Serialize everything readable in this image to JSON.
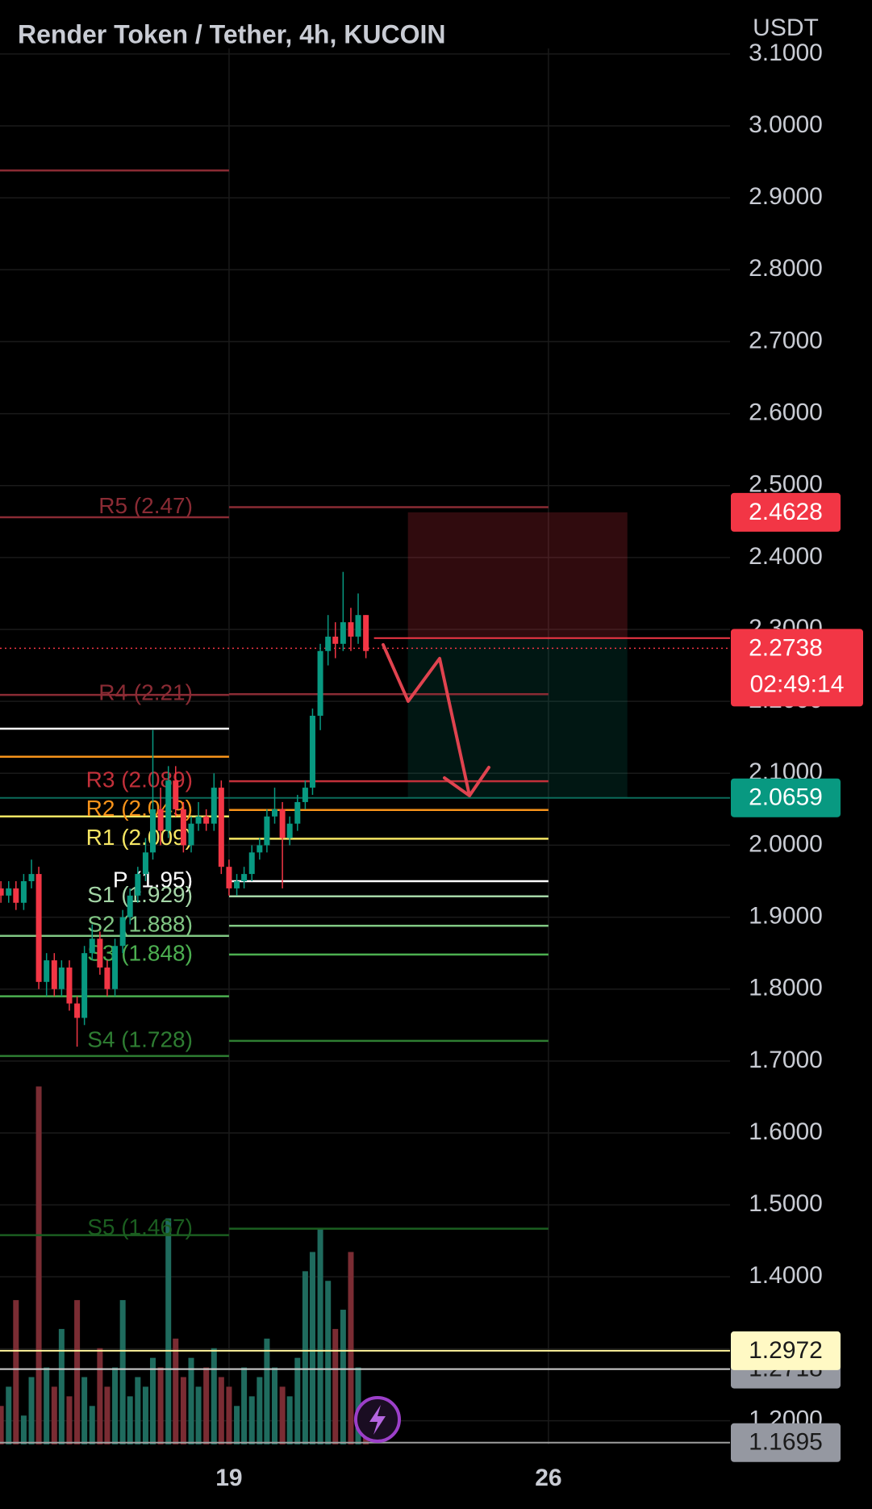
{
  "chart_data": {
    "type": "candlestick",
    "title": "Render Token / Tether, 4h, KUCOIN",
    "currency": "USDT",
    "xlim": [
      13.98,
      29.98
    ],
    "xticks": [
      19,
      26
    ],
    "ylim": [
      1.167,
      3.175
    ],
    "yticks": [
      {
        "value": 1.2,
        "label": "1.2000"
      },
      {
        "value": 1.3,
        "label": "1.3000"
      },
      {
        "value": 1.4,
        "label": "1.4000"
      },
      {
        "value": 1.5,
        "label": "1.5000"
      },
      {
        "value": 1.6,
        "label": "1.6000"
      },
      {
        "value": 1.7,
        "label": "1.7000"
      },
      {
        "value": 1.8,
        "label": "1.8000"
      },
      {
        "value": 1.9,
        "label": "1.9000"
      },
      {
        "value": 2,
        "label": "2.0000"
      },
      {
        "value": 2.1,
        "label": "2.1000"
      },
      {
        "value": 2.2,
        "label": "2.2000"
      },
      {
        "value": 2.3,
        "label": "2.3000"
      },
      {
        "value": 2.4,
        "label": "2.4000"
      },
      {
        "value": 2.5,
        "label": "2.5000"
      },
      {
        "value": 2.6,
        "label": "2.6000"
      },
      {
        "value": 2.7,
        "label": "2.7000"
      },
      {
        "value": 2.8,
        "label": "2.8000"
      },
      {
        "value": 2.9,
        "label": "2.9000"
      },
      {
        "value": 3,
        "label": "3.0000"
      },
      {
        "value": 3.1,
        "label": "3.1000"
      }
    ],
    "grid": true,
    "up_color": "#089981",
    "down_color": "#f23645",
    "x": [
      14,
      14.17,
      14.33,
      14.5,
      14.67,
      14.83,
      15,
      15.17,
      15.33,
      15.5,
      15.67,
      15.83,
      16,
      16.17,
      16.33,
      16.5,
      16.67,
      16.83,
      17,
      17.17,
      17.33,
      17.5,
      17.67,
      17.83,
      18,
      18.17,
      18.33,
      18.5,
      18.67,
      18.83,
      19,
      19.17,
      19.33,
      19.5,
      19.67,
      19.83,
      20,
      20.17,
      20.33,
      20.5,
      20.67,
      20.83,
      21,
      21.17,
      21.33,
      21.5,
      21.67,
      21.83,
      22
    ],
    "candles": [
      [
        1.94,
        1.95,
        1.92,
        1.93
      ],
      [
        1.93,
        1.95,
        1.92,
        1.94
      ],
      [
        1.94,
        1.95,
        1.91,
        1.92
      ],
      [
        1.92,
        1.96,
        1.91,
        1.95
      ],
      [
        1.95,
        1.98,
        1.94,
        1.96
      ],
      [
        1.96,
        1.97,
        1.8,
        1.81
      ],
      [
        1.81,
        1.85,
        1.79,
        1.84
      ],
      [
        1.84,
        1.85,
        1.79,
        1.8
      ],
      [
        1.8,
        1.84,
        1.79,
        1.83
      ],
      [
        1.83,
        1.84,
        1.77,
        1.78
      ],
      [
        1.78,
        1.79,
        1.72,
        1.76
      ],
      [
        1.76,
        1.86,
        1.75,
        1.85
      ],
      [
        1.85,
        1.89,
        1.84,
        1.87
      ],
      [
        1.87,
        1.88,
        1.82,
        1.83
      ],
      [
        1.83,
        1.84,
        1.79,
        1.8
      ],
      [
        1.8,
        1.87,
        1.79,
        1.86
      ],
      [
        1.86,
        1.91,
        1.85,
        1.9
      ],
      [
        1.9,
        1.94,
        1.89,
        1.93
      ],
      [
        1.93,
        1.97,
        1.92,
        1.96
      ],
      [
        1.96,
        2.01,
        1.95,
        1.99
      ],
      [
        1.99,
        2.16,
        1.98,
        2.05
      ],
      [
        2.05,
        2.08,
        2.0,
        2.02
      ],
      [
        2.02,
        2.11,
        2.01,
        2.09
      ],
      [
        2.09,
        2.11,
        2.04,
        2.05
      ],
      [
        2.05,
        2.06,
        1.99,
        2.0
      ],
      [
        2.0,
        2.04,
        1.99,
        2.03
      ],
      [
        2.03,
        2.06,
        2.02,
        2.04
      ],
      [
        2.04,
        2.05,
        2.02,
        2.03
      ],
      [
        2.03,
        2.1,
        2.02,
        2.08
      ],
      [
        2.08,
        2.09,
        1.96,
        1.97
      ],
      [
        1.97,
        1.98,
        1.93,
        1.94
      ],
      [
        1.94,
        1.96,
        1.93,
        1.95
      ],
      [
        1.95,
        1.97,
        1.94,
        1.96
      ],
      [
        1.96,
        2.0,
        1.95,
        1.99
      ],
      [
        1.99,
        2.01,
        1.98,
        2.0
      ],
      [
        2.0,
        2.05,
        1.99,
        2.04
      ],
      [
        2.04,
        2.08,
        2.03,
        2.05
      ],
      [
        2.05,
        2.06,
        1.94,
        2.01
      ],
      [
        2.01,
        2.04,
        2.0,
        2.03
      ],
      [
        2.03,
        2.07,
        2.02,
        2.06
      ],
      [
        2.06,
        2.09,
        2.05,
        2.08
      ],
      [
        2.08,
        2.19,
        2.07,
        2.18
      ],
      [
        2.18,
        2.28,
        2.16,
        2.27
      ],
      [
        2.27,
        2.32,
        2.25,
        2.29
      ],
      [
        2.29,
        2.31,
        2.26,
        2.28
      ],
      [
        2.28,
        2.38,
        2.27,
        2.31
      ],
      [
        2.31,
        2.33,
        2.27,
        2.29
      ],
      [
        2.29,
        2.35,
        2.28,
        2.32
      ],
      [
        2.32,
        2.32,
        2.26,
        2.27
      ]
    ],
    "volume": [
      40,
      60,
      150,
      30,
      70,
      372,
      80,
      60,
      120,
      50,
      150,
      70,
      40,
      100,
      60,
      80,
      150,
      50,
      70,
      60,
      90,
      80,
      235,
      110,
      70,
      90,
      60,
      80,
      100,
      70,
      60,
      40,
      80,
      50,
      70,
      110,
      80,
      60,
      50,
      90,
      180,
      200,
      225,
      170,
      120,
      140,
      200,
      80,
      30
    ],
    "volume_lim": [
      0,
      400
    ],
    "pivot_range": [
      19,
      26
    ],
    "pivots": [
      {
        "label": "R5 (2.47)",
        "value": 2.47,
        "color": "#8a2b34"
      },
      {
        "label": "R4 (2.21)",
        "value": 2.21,
        "color": "#8a2b34"
      },
      {
        "label": "R3 (2.089)",
        "value": 2.089,
        "color": "#c2303a"
      },
      {
        "label": "R2 (2.049)",
        "value": 2.049,
        "color": "#f7931a"
      },
      {
        "label": "R1 (2.009)",
        "value": 2.009,
        "color": "#f5e663"
      },
      {
        "label": "P (1.95)",
        "value": 1.95,
        "color": "#ffffff"
      },
      {
        "label": "S1 (1.929)",
        "value": 1.929,
        "color": "#a5d6a7"
      },
      {
        "label": "S2 (1.888)",
        "value": 1.888,
        "color": "#81c784"
      },
      {
        "label": "S3 (1.848)",
        "value": 1.848,
        "color": "#4caf50"
      },
      {
        "label": "S4 (1.728)",
        "value": 1.728,
        "color": "#2e7d32"
      },
      {
        "label": "S5 (1.467)",
        "value": 1.467,
        "color": "#1b5e20"
      }
    ],
    "prev_pivot_range": [
      13.98,
      19
    ],
    "prev_pivots": [
      {
        "value": 2.938,
        "color": "#8a2b34"
      },
      {
        "value": 2.456,
        "color": "#8a2b34"
      },
      {
        "value": 2.209,
        "color": "#8a2b34"
      },
      {
        "value": 2.162,
        "color": "#ffffff"
      },
      {
        "value": 2.123,
        "color": "#f7931a"
      },
      {
        "value": 2.04,
        "color": "#f5e663"
      },
      {
        "value": 1.874,
        "color": "#81c784"
      },
      {
        "value": 1.79,
        "color": "#4caf50"
      },
      {
        "value": 1.707,
        "color": "#2e7d32"
      },
      {
        "value": 1.458,
        "color": "#1b5e20"
      }
    ],
    "position": {
      "x": [
        22.92,
        27.73
      ],
      "stop": 2.4628,
      "entry": 2.288,
      "target": 2.0659
    },
    "last_price": 2.2738,
    "countdown": "02:49:14",
    "price_labels": [
      {
        "value": 2.4628,
        "color": "#f23645",
        "text_color": "#ffffff"
      },
      {
        "value": 2.0659,
        "color": "#089981",
        "text_color": "#ffffff",
        "line": "#0b6b5a"
      },
      {
        "value": 1.2718,
        "color": "#9598a1",
        "text_color": "#1a1a1a",
        "line": "#cfcfcf"
      },
      {
        "value": 1.2972,
        "color": "#fff9c4",
        "text_color": "#1a1a1a",
        "line": "#fff59d"
      },
      {
        "value": 1.1695,
        "color": "#9598a1",
        "text_color": "#1a1a1a",
        "line": "#9e9e9e"
      },
      {
        "value": 2.2738,
        "color": "#f23645",
        "text_color": "#ffffff"
      }
    ]
  }
}
